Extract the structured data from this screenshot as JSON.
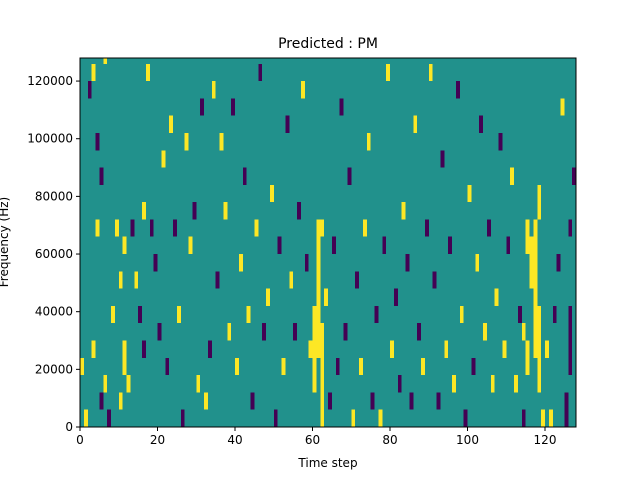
{
  "chart_data": {
    "type": "heatmap",
    "title": "Predicted : PM",
    "xlabel": "Time step",
    "ylabel": "Frequency (Hz)",
    "xlim": [
      0,
      128
    ],
    "ylim": [
      0,
      128000
    ],
    "x_ticks": [
      0,
      20,
      40,
      60,
      80,
      100,
      120
    ],
    "x_tick_labels": [
      "0",
      "20",
      "40",
      "60",
      "80",
      "100",
      "120"
    ],
    "y_ticks": [
      0,
      20000,
      40000,
      60000,
      80000,
      100000,
      120000
    ],
    "y_tick_labels": [
      "0",
      "20000",
      "40000",
      "60000",
      "80000",
      "100000",
      "120000"
    ],
    "grid": false,
    "legend": "none",
    "colormap": "viridis",
    "levels": {
      "low": 0,
      "mid": 0.5,
      "high": 1
    },
    "colors": {
      "background": "#21918c",
      "high": "#fde725",
      "low": "#440154"
    },
    "time_steps": 128,
    "frequency_bins": 22,
    "bin_height_hz": 6000,
    "background_value": 0.5,
    "cells_note": "Each cell: [time_step_start, time_step_end, freq_start_hz, freq_end_hz, value]; cells not listed equal background_value",
    "cells": [
      [
        0,
        1,
        18000,
        24000,
        1
      ],
      [
        1,
        2,
        0,
        6000,
        1
      ],
      [
        2,
        3,
        114000,
        120000,
        0
      ],
      [
        3,
        4,
        120000,
        126000,
        1
      ],
      [
        3,
        4,
        24000,
        30000,
        1
      ],
      [
        4,
        5,
        66000,
        72000,
        1
      ],
      [
        4,
        5,
        96000,
        102000,
        0
      ],
      [
        5,
        6,
        84000,
        90000,
        0
      ],
      [
        5,
        6,
        6000,
        12000,
        0
      ],
      [
        6,
        7,
        12000,
        18000,
        1
      ],
      [
        6,
        7,
        126000,
        128000,
        1
      ],
      [
        7,
        8,
        0,
        6000,
        0
      ],
      [
        8,
        9,
        36000,
        42000,
        1
      ],
      [
        9,
        10,
        66000,
        72000,
        1
      ],
      [
        10,
        11,
        6000,
        12000,
        1
      ],
      [
        10,
        11,
        48000,
        54000,
        1
      ],
      [
        11,
        12,
        18000,
        30000,
        1
      ],
      [
        11,
        12,
        60000,
        66000,
        1
      ],
      [
        12,
        13,
        12000,
        18000,
        1
      ],
      [
        13,
        14,
        66000,
        72000,
        0
      ],
      [
        14,
        15,
        48000,
        54000,
        1
      ],
      [
        15,
        16,
        36000,
        42000,
        0
      ],
      [
        16,
        17,
        24000,
        30000,
        0
      ],
      [
        16,
        17,
        72000,
        78000,
        1
      ],
      [
        17,
        18,
        120000,
        126000,
        1
      ],
      [
        18,
        19,
        66000,
        72000,
        0
      ],
      [
        19,
        20,
        54000,
        60000,
        0
      ],
      [
        20,
        21,
        30000,
        36000,
        0
      ],
      [
        21,
        22,
        90000,
        96000,
        1
      ],
      [
        22,
        23,
        18000,
        24000,
        0
      ],
      [
        23,
        24,
        102000,
        108000,
        1
      ],
      [
        24,
        25,
        66000,
        72000,
        0
      ],
      [
        25,
        26,
        36000,
        42000,
        1
      ],
      [
        26,
        27,
        0,
        6000,
        0
      ],
      [
        27,
        28,
        96000,
        102000,
        1
      ],
      [
        28,
        29,
        60000,
        66000,
        1
      ],
      [
        29,
        30,
        72000,
        78000,
        0
      ],
      [
        30,
        31,
        12000,
        18000,
        1
      ],
      [
        31,
        32,
        108000,
        114000,
        0
      ],
      [
        32,
        33,
        6000,
        12000,
        1
      ],
      [
        33,
        34,
        24000,
        30000,
        0
      ],
      [
        34,
        35,
        114000,
        120000,
        1
      ],
      [
        35,
        36,
        48000,
        54000,
        0
      ],
      [
        36,
        37,
        96000,
        102000,
        1
      ],
      [
        37,
        38,
        72000,
        78000,
        1
      ],
      [
        38,
        39,
        30000,
        36000,
        1
      ],
      [
        39,
        40,
        108000,
        114000,
        0
      ],
      [
        40,
        41,
        18000,
        24000,
        1
      ],
      [
        41,
        42,
        54000,
        60000,
        1
      ],
      [
        42,
        43,
        84000,
        90000,
        0
      ],
      [
        43,
        44,
        36000,
        42000,
        1
      ],
      [
        44,
        45,
        6000,
        12000,
        0
      ],
      [
        45,
        46,
        66000,
        72000,
        1
      ],
      [
        46,
        47,
        120000,
        126000,
        0
      ],
      [
        47,
        48,
        30000,
        36000,
        0
      ],
      [
        48,
        49,
        42000,
        48000,
        1
      ],
      [
        49,
        50,
        78000,
        84000,
        1
      ],
      [
        50,
        51,
        0,
        6000,
        0
      ],
      [
        51,
        52,
        60000,
        66000,
        0
      ],
      [
        52,
        53,
        18000,
        24000,
        1
      ],
      [
        53,
        54,
        102000,
        108000,
        0
      ],
      [
        54,
        55,
        48000,
        54000,
        1
      ],
      [
        55,
        56,
        30000,
        36000,
        0
      ],
      [
        56,
        57,
        72000,
        78000,
        0
      ],
      [
        57,
        58,
        114000,
        120000,
        1
      ],
      [
        58,
        59,
        54000,
        60000,
        0
      ],
      [
        59,
        60,
        24000,
        30000,
        1
      ],
      [
        60,
        61,
        12000,
        42000,
        1
      ],
      [
        61,
        62,
        24000,
        72000,
        1
      ],
      [
        62,
        63,
        0,
        36000,
        1
      ],
      [
        62,
        63,
        66000,
        72000,
        1
      ],
      [
        63,
        64,
        42000,
        48000,
        1
      ],
      [
        64,
        65,
        6000,
        12000,
        0
      ],
      [
        65,
        66,
        60000,
        66000,
        0
      ],
      [
        66,
        67,
        18000,
        24000,
        0
      ],
      [
        67,
        68,
        108000,
        114000,
        0
      ],
      [
        68,
        69,
        30000,
        36000,
        0
      ],
      [
        69,
        70,
        84000,
        90000,
        0
      ],
      [
        70,
        71,
        0,
        6000,
        1
      ],
      [
        71,
        72,
        48000,
        54000,
        0
      ],
      [
        72,
        73,
        18000,
        24000,
        1
      ],
      [
        73,
        74,
        66000,
        72000,
        1
      ],
      [
        74,
        75,
        96000,
        102000,
        1
      ],
      [
        75,
        76,
        6000,
        12000,
        0
      ],
      [
        76,
        77,
        36000,
        42000,
        0
      ],
      [
        77,
        78,
        0,
        6000,
        1
      ],
      [
        78,
        79,
        60000,
        66000,
        0
      ],
      [
        79,
        80,
        120000,
        126000,
        1
      ],
      [
        80,
        81,
        24000,
        30000,
        1
      ],
      [
        81,
        82,
        42000,
        48000,
        0
      ],
      [
        82,
        83,
        12000,
        18000,
        0
      ],
      [
        83,
        84,
        72000,
        78000,
        1
      ],
      [
        84,
        85,
        54000,
        60000,
        0
      ],
      [
        85,
        86,
        6000,
        12000,
        0
      ],
      [
        86,
        87,
        102000,
        108000,
        1
      ],
      [
        87,
        88,
        30000,
        36000,
        0
      ],
      [
        88,
        89,
        18000,
        24000,
        1
      ],
      [
        89,
        90,
        66000,
        72000,
        0
      ],
      [
        90,
        91,
        120000,
        126000,
        1
      ],
      [
        91,
        92,
        48000,
        54000,
        0
      ],
      [
        92,
        93,
        6000,
        12000,
        0
      ],
      [
        93,
        94,
        90000,
        96000,
        0
      ],
      [
        94,
        95,
        24000,
        30000,
        1
      ],
      [
        95,
        96,
        60000,
        66000,
        0
      ],
      [
        96,
        97,
        12000,
        18000,
        1
      ],
      [
        97,
        98,
        114000,
        120000,
        0
      ],
      [
        98,
        99,
        36000,
        42000,
        1
      ],
      [
        99,
        100,
        0,
        6000,
        0
      ],
      [
        100,
        101,
        78000,
        84000,
        1
      ],
      [
        101,
        102,
        18000,
        24000,
        0
      ],
      [
        102,
        103,
        54000,
        60000,
        1
      ],
      [
        103,
        104,
        102000,
        108000,
        0
      ],
      [
        104,
        105,
        30000,
        36000,
        1
      ],
      [
        105,
        106,
        66000,
        72000,
        0
      ],
      [
        106,
        107,
        12000,
        18000,
        1
      ],
      [
        107,
        108,
        42000,
        48000,
        1
      ],
      [
        108,
        109,
        96000,
        102000,
        0
      ],
      [
        109,
        110,
        24000,
        30000,
        1
      ],
      [
        110,
        111,
        60000,
        66000,
        0
      ],
      [
        111,
        112,
        84000,
        90000,
        1
      ],
      [
        112,
        113,
        12000,
        18000,
        1
      ],
      [
        113,
        114,
        36000,
        42000,
        0
      ],
      [
        114,
        115,
        0,
        6000,
        0
      ],
      [
        114,
        115,
        30000,
        36000,
        1
      ],
      [
        115,
        116,
        18000,
        30000,
        1
      ],
      [
        115,
        116,
        60000,
        72000,
        1
      ],
      [
        116,
        117,
        48000,
        66000,
        1
      ],
      [
        117,
        118,
        24000,
        72000,
        1
      ],
      [
        118,
        119,
        12000,
        42000,
        1
      ],
      [
        118,
        119,
        72000,
        84000,
        1
      ],
      [
        119,
        120,
        0,
        6000,
        1
      ],
      [
        120,
        121,
        24000,
        30000,
        1
      ],
      [
        121,
        122,
        0,
        6000,
        1
      ],
      [
        122,
        123,
        36000,
        42000,
        0
      ],
      [
        123,
        124,
        54000,
        60000,
        0
      ],
      [
        124,
        125,
        108000,
        114000,
        1
      ],
      [
        125,
        126,
        0,
        12000,
        0
      ],
      [
        126,
        127,
        18000,
        42000,
        0
      ],
      [
        126,
        127,
        66000,
        72000,
        0
      ],
      [
        127,
        128,
        84000,
        90000,
        0
      ]
    ]
  }
}
